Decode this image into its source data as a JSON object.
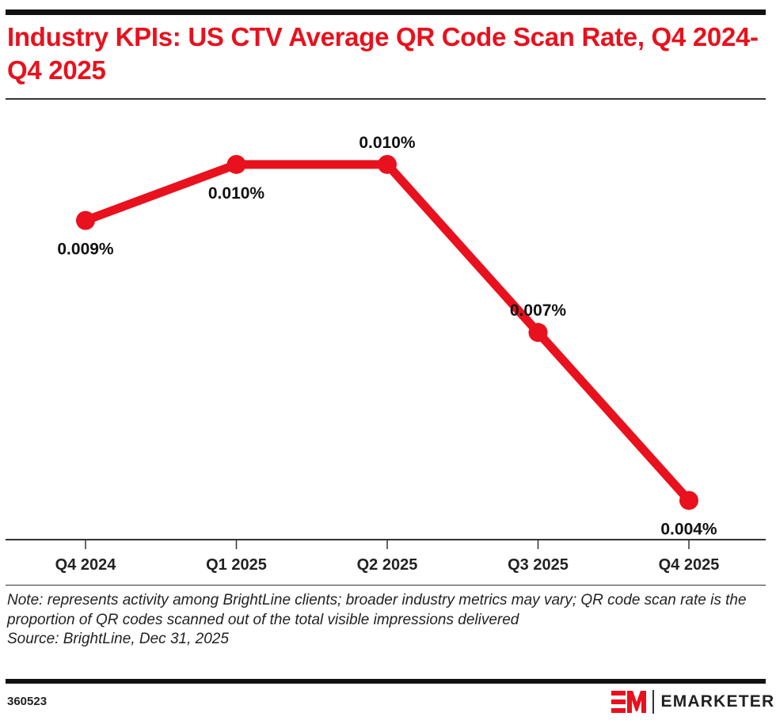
{
  "header": {
    "title": "Industry KPIs: US CTV Average QR Code Scan Rate, Q4 2024-Q4 2025"
  },
  "chart_data": {
    "type": "line",
    "title": "Industry KPIs: US CTV Average QR Code Scan Rate, Q4 2024-Q4 2025",
    "xlabel": "",
    "ylabel": "",
    "categories": [
      "Q4 2024",
      "Q1 2025",
      "Q2 2025",
      "Q3 2025",
      "Q4 2025"
    ],
    "series": [
      {
        "name": "Average QR code scan rate",
        "values": [
          0.0091,
          0.0101,
          0.0101,
          0.0071,
          0.0041
        ],
        "labels": [
          "0.009%",
          "0.010%",
          "0.010%",
          "0.007%",
          "0.004%"
        ],
        "label_positions": [
          "below",
          "below",
          "above",
          "above",
          "below"
        ],
        "color": "#e8111d"
      }
    ],
    "units": "%",
    "ylim": [
      0.0034,
      0.0112
    ],
    "grid": false,
    "legend": "none",
    "y_axis_visible": false
  },
  "footer": {
    "note": "Note: represents activity among BrightLine clients; broader industry metrics may vary; QR code scan rate is the proportion of QR codes scanned out of the total visible impressions delivered",
    "source": "Source: BrightLine, Dec 31, 2025",
    "chart_id": "360523",
    "brand": "EMARKETER",
    "brand_color": "#e8111d"
  }
}
